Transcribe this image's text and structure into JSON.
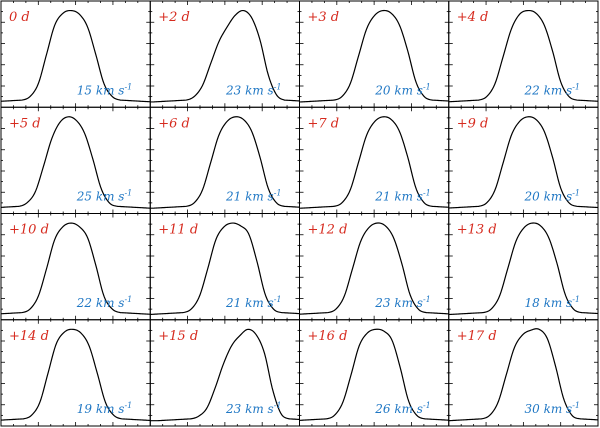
{
  "colors": {
    "epoch": "#d62a1e",
    "velocity": "#1f77c4",
    "profile": "#000000",
    "frame": "#000000"
  },
  "unit_label": "km s",
  "unit_exponent": "-1",
  "chart_data": {
    "type": "line",
    "layout": "4x4 small multiples",
    "grid": false,
    "title": "",
    "xlabel": "",
    "ylabel": "",
    "panels": [
      {
        "epoch": "0 d",
        "velocity": "15",
        "center": 0.47,
        "shape": [
          0.02,
          0.06,
          0.2,
          0.52,
          0.84,
          0.97,
          1.0,
          0.96,
          0.82,
          0.52,
          0.2,
          0.06,
          0.02
        ]
      },
      {
        "epoch": "+2 d",
        "velocity": "23",
        "center": 0.57,
        "shape": [
          0.02,
          0.06,
          0.18,
          0.42,
          0.66,
          0.82,
          0.95,
          1.0,
          0.92,
          0.68,
          0.3,
          0.08,
          0.02
        ]
      },
      {
        "epoch": "+3 d",
        "velocity": "20",
        "center": 0.56,
        "shape": [
          0.02,
          0.06,
          0.2,
          0.5,
          0.8,
          0.95,
          1.0,
          0.97,
          0.84,
          0.56,
          0.22,
          0.06,
          0.02
        ]
      },
      {
        "epoch": "+4 d",
        "velocity": "22",
        "center": 0.53,
        "shape": [
          0.02,
          0.06,
          0.2,
          0.5,
          0.8,
          0.96,
          1.0,
          0.97,
          0.84,
          0.56,
          0.22,
          0.06,
          0.02
        ]
      },
      {
        "epoch": "+5 d",
        "velocity": "25",
        "center": 0.45,
        "shape": [
          0.02,
          0.06,
          0.18,
          0.46,
          0.76,
          0.94,
          1.0,
          0.96,
          0.82,
          0.54,
          0.22,
          0.06,
          0.02
        ]
      },
      {
        "epoch": "+6 d",
        "velocity": "21",
        "center": 0.57,
        "shape": [
          0.02,
          0.06,
          0.2,
          0.5,
          0.8,
          0.95,
          1.0,
          0.97,
          0.84,
          0.56,
          0.22,
          0.06,
          0.02
        ]
      },
      {
        "epoch": "+7 d",
        "velocity": "21",
        "center": 0.56,
        "shape": [
          0.02,
          0.06,
          0.2,
          0.5,
          0.8,
          0.95,
          1.0,
          0.97,
          0.84,
          0.56,
          0.22,
          0.06,
          0.02
        ]
      },
      {
        "epoch": "+9 d",
        "velocity": "20",
        "center": 0.53,
        "shape": [
          0.02,
          0.06,
          0.2,
          0.5,
          0.8,
          0.95,
          1.0,
          0.97,
          0.84,
          0.56,
          0.22,
          0.06,
          0.02
        ]
      },
      {
        "epoch": "+10 d",
        "velocity": "22",
        "center": 0.47,
        "shape": [
          0.02,
          0.06,
          0.2,
          0.5,
          0.82,
          0.96,
          1.0,
          0.96,
          0.84,
          0.54,
          0.2,
          0.06,
          0.02
        ]
      },
      {
        "epoch": "+11 d",
        "velocity": "21",
        "center": 0.55,
        "shape": [
          0.02,
          0.06,
          0.2,
          0.5,
          0.82,
          0.96,
          1.0,
          0.97,
          0.88,
          0.58,
          0.22,
          0.06,
          0.02
        ]
      },
      {
        "epoch": "+12 d",
        "velocity": "23",
        "center": 0.52,
        "shape": [
          0.02,
          0.06,
          0.2,
          0.5,
          0.8,
          0.95,
          1.0,
          0.97,
          0.84,
          0.56,
          0.22,
          0.06,
          0.02
        ]
      },
      {
        "epoch": "+13 d",
        "velocity": "18",
        "center": 0.56,
        "shape": [
          0.02,
          0.06,
          0.2,
          0.5,
          0.8,
          0.95,
          1.0,
          0.97,
          0.84,
          0.56,
          0.22,
          0.06,
          0.02
        ]
      },
      {
        "epoch": "+14 d",
        "velocity": "19",
        "center": 0.48,
        "shape": [
          0.02,
          0.06,
          0.2,
          0.52,
          0.84,
          0.97,
          1.0,
          0.96,
          0.82,
          0.52,
          0.2,
          0.06,
          0.02
        ]
      },
      {
        "epoch": "+15 d",
        "velocity": "23",
        "center": 0.6,
        "shape": [
          0.02,
          0.05,
          0.14,
          0.36,
          0.62,
          0.82,
          0.93,
          1.0,
          0.94,
          0.74,
          0.34,
          0.08,
          0.02
        ]
      },
      {
        "epoch": "+16 d",
        "velocity": "26",
        "center": 0.51,
        "shape": [
          0.02,
          0.06,
          0.2,
          0.5,
          0.82,
          0.96,
          1.0,
          0.98,
          0.88,
          0.58,
          0.22,
          0.06,
          0.02
        ]
      },
      {
        "epoch": "+17 d",
        "velocity": "30",
        "center": 0.55,
        "shape": [
          0.02,
          0.06,
          0.2,
          0.5,
          0.8,
          0.94,
          0.99,
          1.0,
          0.9,
          0.6,
          0.24,
          0.06,
          0.02
        ]
      }
    ]
  }
}
